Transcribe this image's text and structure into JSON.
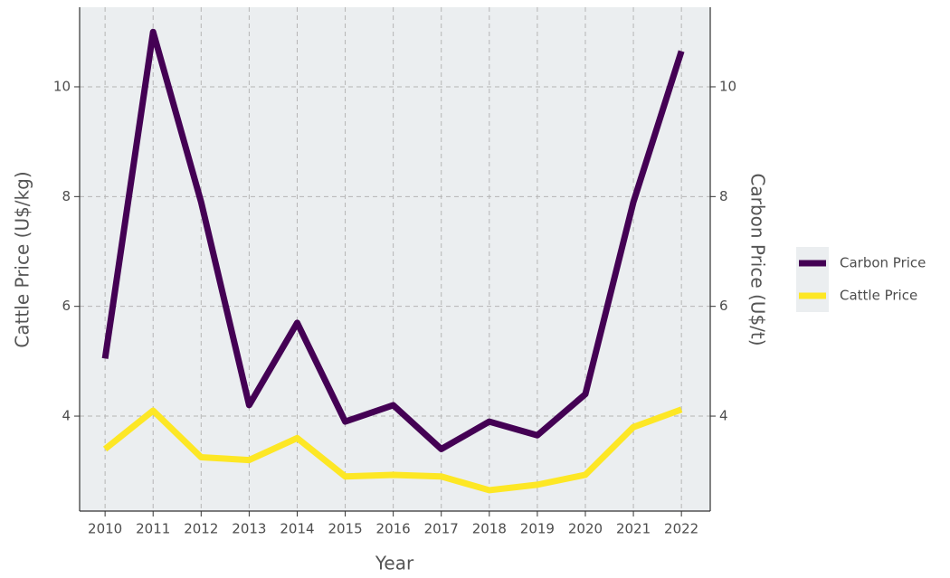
{
  "chart_data": {
    "type": "line",
    "xlabel": "Year",
    "ylabel": "Cattle Price (U$/kg)",
    "y2label": "Carbon Price (U$/t)",
    "x": [
      2010,
      2011,
      2012,
      2013,
      2014,
      2015,
      2016,
      2017,
      2018,
      2019,
      2020,
      2021,
      2022
    ],
    "series": [
      {
        "name": "Carbon Price",
        "color": "#440154",
        "axis": "y2",
        "values": [
          5.05,
          11.0,
          7.9,
          4.2,
          5.7,
          3.9,
          4.2,
          3.4,
          3.9,
          3.65,
          4.4,
          7.9,
          10.65
        ]
      },
      {
        "name": "Cattle Price",
        "color": "#fde725",
        "values": [
          3.4,
          4.1,
          3.25,
          3.2,
          3.6,
          2.9,
          2.93,
          2.9,
          2.65,
          2.75,
          2.93,
          3.8,
          4.12
        ]
      }
    ],
    "xlim": [
      2009.47,
      2022.6
    ],
    "xticks": [
      2010,
      2011,
      2012,
      2013,
      2014,
      2015,
      2016,
      2017,
      2018,
      2019,
      2020,
      2021,
      2022
    ],
    "ylim": [
      2.27,
      11.45
    ],
    "yticks": [
      4,
      6,
      8,
      10
    ],
    "y2lim": [
      2.27,
      11.45
    ],
    "y2ticks": [
      4,
      6,
      8,
      10
    ],
    "grid": true,
    "legend": "right"
  }
}
